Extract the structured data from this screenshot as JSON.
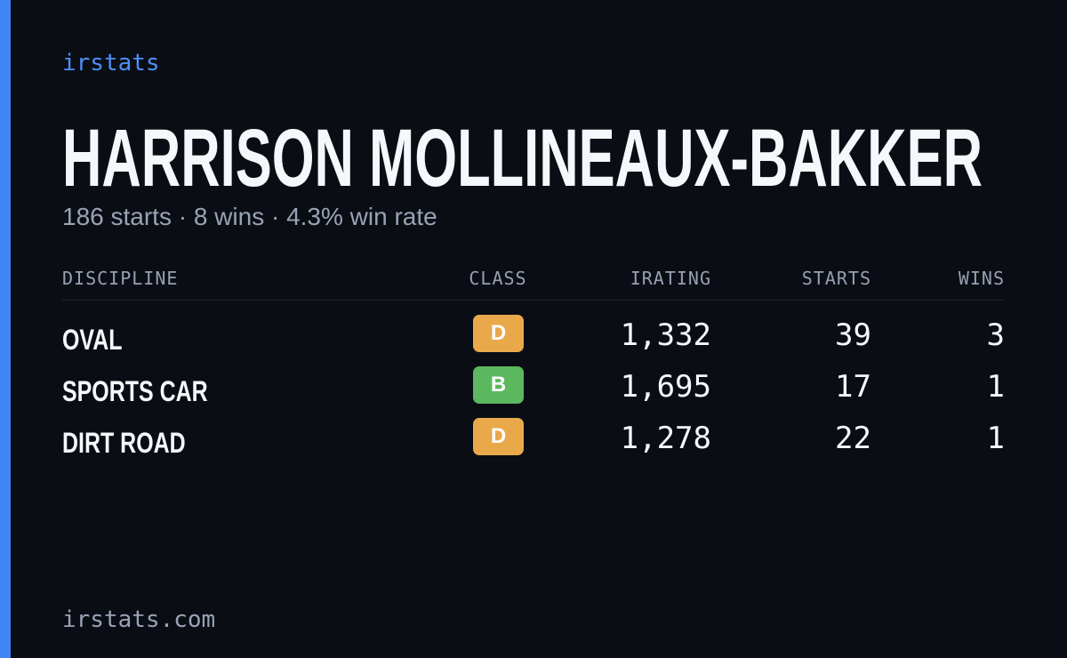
{
  "brand": "irstats",
  "player": {
    "name": "HARRISON MOLLINEAUX-BAKKER",
    "summary": "186 starts · 8 wins · 4.3% win rate"
  },
  "table": {
    "columns": [
      "DISCIPLINE",
      "CLASS",
      "IRATING",
      "STARTS",
      "WINS"
    ],
    "rows": [
      [
        "OVAL",
        "D",
        "1,332",
        "39",
        "3"
      ],
      [
        "SPORTS CAR",
        "B",
        "1,695",
        "17",
        "1"
      ],
      [
        "DIRT ROAD",
        "D",
        "1,278",
        "22",
        "1"
      ]
    ],
    "badge_colors": {
      "D": "#e9a94b",
      "B": "#5cb85f"
    }
  },
  "footer": "irstats.com"
}
